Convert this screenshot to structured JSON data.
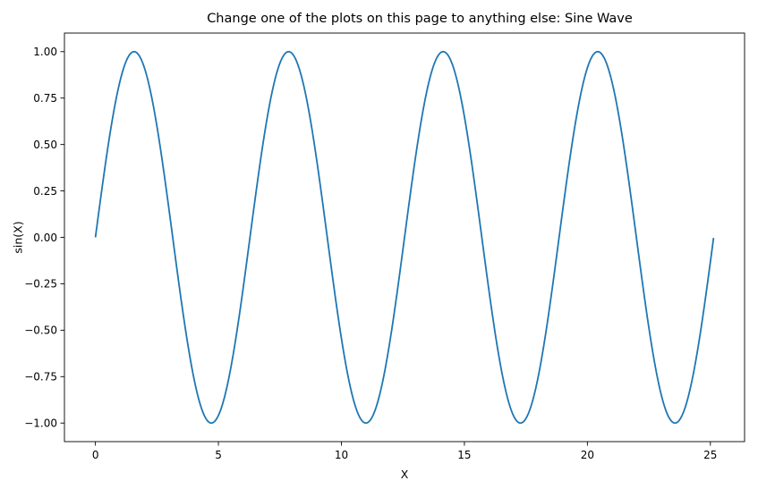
{
  "chart_data": {
    "type": "line",
    "title": "Change one of the plots on this page to anything else:  Sine Wave",
    "xlabel": "X",
    "ylabel": "sin(X)",
    "function": "sin",
    "x_start": 0,
    "x_end": 25.13,
    "xlim": [
      -1.26,
      26.39
    ],
    "ylim": [
      -1.1,
      1.1
    ],
    "x_ticks": [
      0,
      5,
      10,
      15,
      20,
      25
    ],
    "x_tick_labels": [
      "0",
      "5",
      "10",
      "15",
      "20",
      "25"
    ],
    "y_ticks": [
      1.0,
      0.75,
      0.5,
      0.25,
      0.0,
      -0.25,
      -0.5,
      -0.75,
      -1.0
    ],
    "y_tick_labels": [
      "1.00",
      "0.75",
      "0.50",
      "0.25",
      "0.00",
      "−0.25",
      "−0.50",
      "−0.75",
      "−1.00"
    ],
    "grid": false,
    "legend": false,
    "series": [
      {
        "color": "#1f77b4",
        "x": [
          0,
          0.5,
          1,
          1.57,
          2,
          2.5,
          3,
          3.5,
          4,
          4.5,
          4.71,
          5,
          5.5,
          6,
          6.5,
          7,
          7.5,
          7.85,
          8,
          8.5,
          9,
          9.5,
          10,
          10.5,
          11,
          11.5,
          12,
          12.5,
          13,
          13.5,
          14,
          14.14,
          14.5,
          15,
          15.5,
          16,
          16.5,
          17,
          17.28,
          17.5,
          18,
          18.5,
          19,
          19.5,
          20,
          20.42,
          20.5,
          21,
          21.5,
          22,
          22.5,
          23,
          23.5,
          23.56,
          24,
          24.5,
          25,
          25.13
        ],
        "y": [
          0,
          0.48,
          0.84,
          1.0,
          0.91,
          0.6,
          0.14,
          -0.35,
          -0.76,
          -0.98,
          -1.0,
          -0.96,
          -0.71,
          -0.28,
          0.22,
          0.66,
          0.94,
          1.0,
          0.99,
          0.8,
          0.41,
          -0.08,
          -0.54,
          -0.88,
          -1.0,
          -0.88,
          -0.54,
          -0.07,
          0.42,
          0.8,
          0.99,
          1.0,
          0.93,
          0.65,
          0.2,
          -0.29,
          -0.71,
          -0.96,
          -1.0,
          -0.98,
          -0.75,
          -0.34,
          0.15,
          0.61,
          0.91,
          1.0,
          1.0,
          0.84,
          0.47,
          -0.01,
          -0.49,
          -0.85,
          -0.99,
          -1.0,
          -0.91,
          -0.59,
          -0.13,
          0.0
        ]
      }
    ]
  }
}
